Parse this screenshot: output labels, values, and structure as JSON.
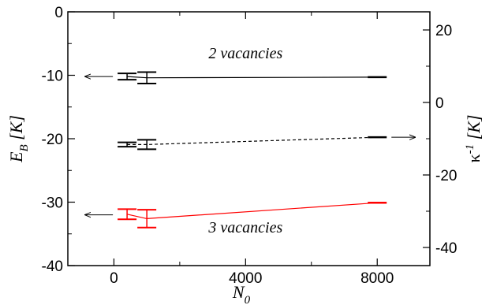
{
  "chart_data": {
    "type": "scatter",
    "xlabel_main": "N",
    "xlabel_sub": "0",
    "ylabel_left_main": "E",
    "ylabel_left_sub": "B",
    "ylabel_left_unit": " [K]",
    "ylabel_right_main": "κ",
    "ylabel_right_sup": "-1",
    "ylabel_right_unit": " [K]",
    "xlim": [
      -1400,
      9600
    ],
    "ylim_left": [
      -40,
      0
    ],
    "ylim_right": [
      -45,
      25
    ],
    "x_ticks": [
      0,
      4000,
      8000
    ],
    "x_tick_labels": [
      "0",
      "4000",
      "8000"
    ],
    "y_left_ticks": [
      -40,
      -30,
      -20,
      -10,
      0
    ],
    "y_left_tick_labels": [
      "-40",
      "-30",
      "-20",
      "-10",
      "0"
    ],
    "y_right_ticks": [
      -40,
      -20,
      0,
      20
    ],
    "y_right_tick_labels": [
      "-40",
      "-20",
      "0",
      "20"
    ],
    "annotations": [
      {
        "text": "2 vacancies",
        "x": 4000,
        "y": -7.3
      },
      {
        "text": "3 vacancies",
        "x": 4000,
        "y": -34.8
      }
    ],
    "series": [
      {
        "axis": "left",
        "color": "#000000",
        "line": "solid",
        "x": [
          400,
          1000,
          8000
        ],
        "y": [
          -10.2,
          -10.4,
          -10.3
        ],
        "err": [
          0.5,
          0.9,
          0.0
        ],
        "arrow_to": "left",
        "arrow_y": -10.2
      },
      {
        "axis": "right",
        "color": "#000000",
        "line": "dashed",
        "x": [
          400,
          1000,
          8000
        ],
        "y": [
          -11.6,
          -11.6,
          -9.6
        ],
        "err": [
          0.6,
          1.3,
          0.0
        ],
        "arrow_to": "right",
        "arrow_y": -9.6
      },
      {
        "axis": "left",
        "color": "#ff0000",
        "line": "solid",
        "x": [
          400,
          1000,
          8000
        ],
        "y": [
          -31.9,
          -32.6,
          -30.1
        ],
        "err": [
          0.8,
          1.4,
          0.0
        ],
        "arrow_to": "left",
        "arrow_y": -32.0
      }
    ]
  }
}
